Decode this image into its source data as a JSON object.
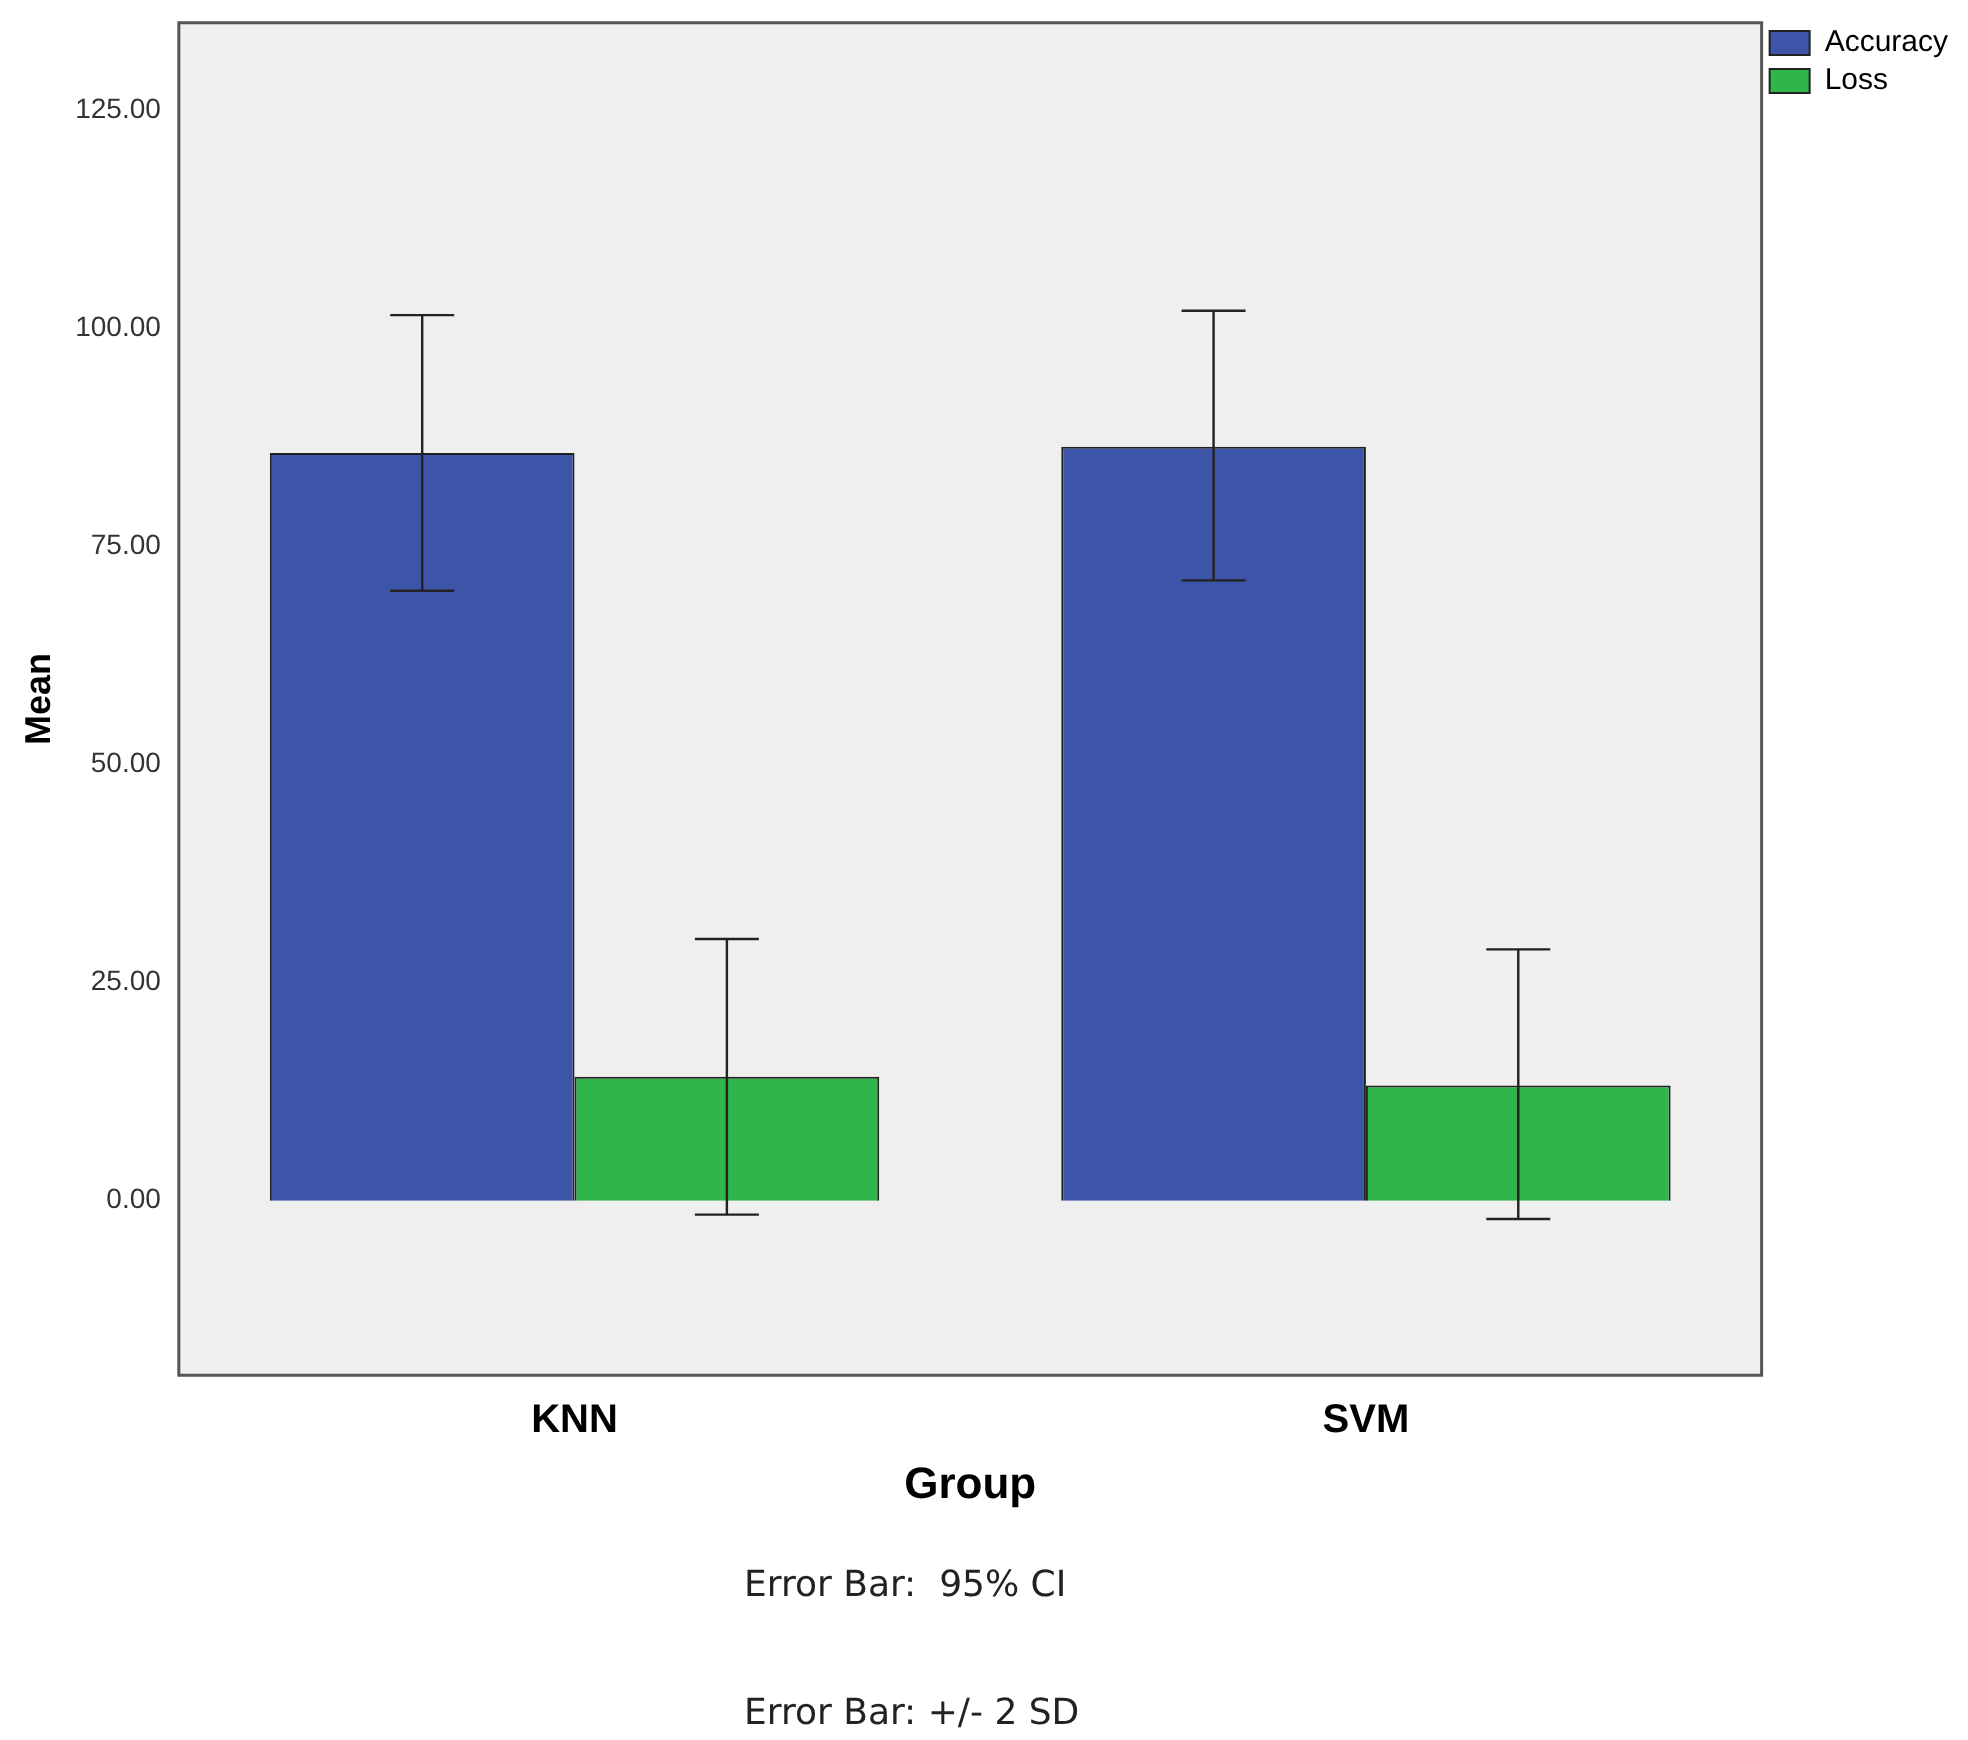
{
  "chart_data": {
    "type": "bar",
    "xlabel": "Group",
    "ylabel": "Mean",
    "categories": [
      "KNN",
      "SVM"
    ],
    "series": [
      {
        "name": "Accuracy",
        "color": "#3c55a8",
        "values": [
          85.7,
          86.4
        ],
        "errors": [
          [
            69.9,
            101.5
          ],
          [
            71.1,
            102.0
          ]
        ]
      },
      {
        "name": "Loss",
        "color": "#2fb54a",
        "values": [
          14.2,
          13.2
        ],
        "errors": [
          [
            -1.6,
            30.0
          ],
          [
            -2.1,
            28.8
          ]
        ]
      }
    ],
    "ylim": [
      -20,
      135
    ],
    "yticks": [
      {
        "value": 0,
        "label": "0.00"
      },
      {
        "value": 25,
        "label": "25.00"
      },
      {
        "value": 50,
        "label": "50.00"
      },
      {
        "value": 75,
        "label": "75.00"
      },
      {
        "value": 100,
        "label": "100.00"
      },
      {
        "value": 125,
        "label": "125.00"
      }
    ],
    "grid": false,
    "legend": "top right",
    "annotations": [
      "Error Bar:  95% CI",
      "Error Bar: +/- 2 SD"
    ]
  }
}
